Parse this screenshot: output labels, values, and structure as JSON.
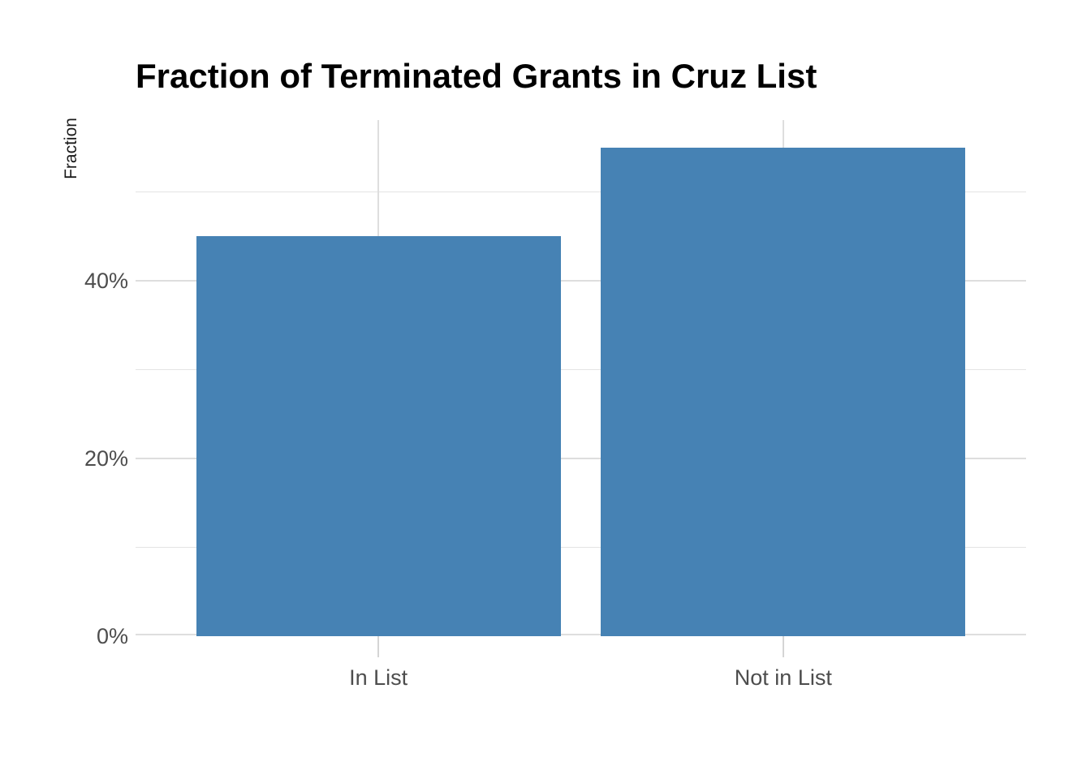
{
  "chart_data": {
    "type": "bar",
    "title": "Fraction of Terminated Grants in Cruz List",
    "ylabel": "Fraction",
    "xlabel": "",
    "categories": [
      "In List",
      "Not in List"
    ],
    "values": [
      45,
      55
    ],
    "value_unit": "percent",
    "series_note": "single series, no legend",
    "legend": "none",
    "ylim": [
      0,
      58.1
    ],
    "yticks_major": [
      {
        "value": 0,
        "label": "0%"
      },
      {
        "value": 20,
        "label": "20%"
      },
      {
        "value": 40,
        "label": "40%"
      }
    ],
    "yticks_minor": [
      10,
      30,
      50
    ],
    "grid": {
      "horizontal_major": true,
      "horizontal_minor": true,
      "vertical_at_category_centers": true
    },
    "colors": {
      "bar": "#4682B4",
      "grid_major": "#dedede",
      "grid_minor": "#e4e4e4",
      "tick_mark": "#d5d5d5",
      "axis_text": "#4d4d4d",
      "title_text": "#000000",
      "background": "#ffffff"
    }
  }
}
